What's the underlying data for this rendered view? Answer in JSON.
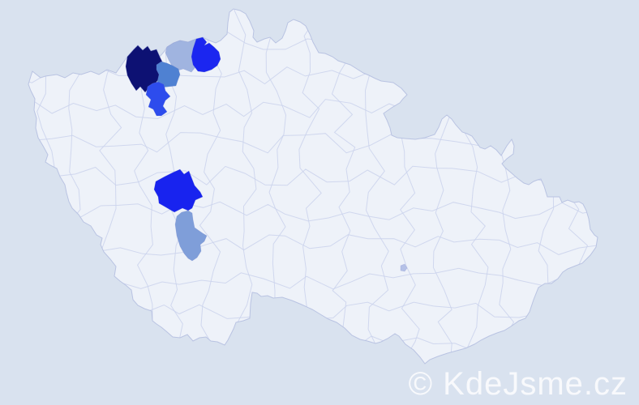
{
  "watermark": {
    "text": "© KdeJsme.cz",
    "color": "#ffffff"
  },
  "map": {
    "description": "Czech Republic district map with highlighted districts",
    "colors": {
      "background": "#d9e2ef",
      "land": "#eef2f9",
      "border": "#cad2ec",
      "outline": "#b9c3e2"
    },
    "districts": [
      {
        "id": "highlight-1",
        "color": "#0d1173"
      },
      {
        "id": "highlight-2",
        "color": "#a0b4e0"
      },
      {
        "id": "highlight-3",
        "color": "#1b26f0"
      },
      {
        "id": "highlight-4",
        "color": "#4f81d2"
      },
      {
        "id": "highlight-5",
        "color": "#2d4ced"
      },
      {
        "id": "highlight-6",
        "color": "#1823ef"
      },
      {
        "id": "highlight-7",
        "color": "#7f9ed9"
      },
      {
        "id": "highlight-8",
        "color": "#b5c1e7"
      }
    ]
  }
}
